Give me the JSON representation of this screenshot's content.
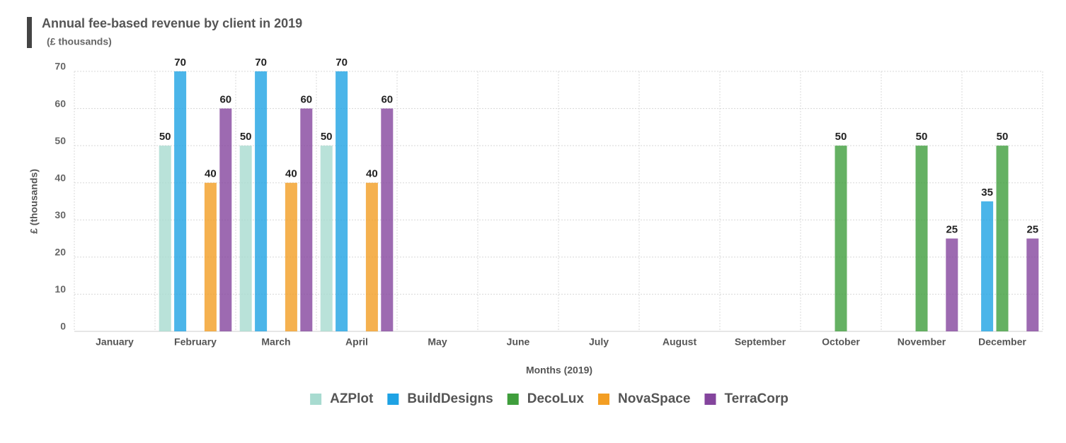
{
  "chart_data": {
    "type": "bar",
    "title": "Annual fee-based revenue by client in 2019",
    "subtitle": "(£ thousands)",
    "y_axis_label": "£ (thousands)",
    "x_axis_label": "Months (2019)",
    "categories": [
      "January",
      "February",
      "March",
      "April",
      "May",
      "June",
      "July",
      "August",
      "September",
      "October",
      "November",
      "December"
    ],
    "series": [
      {
        "name": "AZPlot",
        "color": "#a8dbd0",
        "values": [
          null,
          50,
          50,
          50,
          null,
          null,
          null,
          null,
          null,
          null,
          null,
          null
        ]
      },
      {
        "name": "BuildDesigns",
        "color": "#1ea2e4",
        "values": [
          null,
          70,
          70,
          70,
          null,
          null,
          null,
          null,
          null,
          null,
          null,
          35
        ]
      },
      {
        "name": "DecoLux",
        "color": "#3f9e3c",
        "values": [
          null,
          null,
          null,
          null,
          null,
          null,
          null,
          null,
          null,
          50,
          50,
          50
        ]
      },
      {
        "name": "NovaSpace",
        "color": "#f39e23",
        "values": [
          null,
          40,
          40,
          40,
          null,
          null,
          null,
          null,
          null,
          null,
          null,
          null
        ]
      },
      {
        "name": "TerraCorp",
        "color": "#84459d",
        "values": [
          null,
          60,
          60,
          60,
          null,
          null,
          null,
          null,
          null,
          null,
          25,
          25
        ]
      }
    ],
    "ylim": [
      0,
      70
    ],
    "yticks": [
      0,
      10,
      20,
      30,
      40,
      50,
      60,
      70
    ],
    "grid": true,
    "legend": "bottom"
  }
}
